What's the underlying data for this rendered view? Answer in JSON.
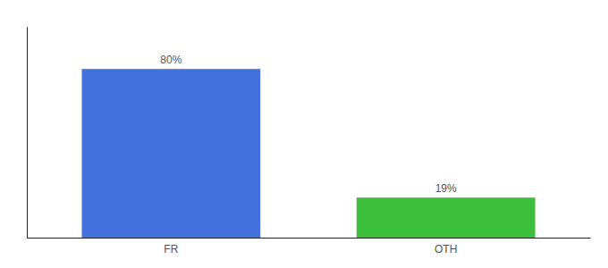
{
  "chart_data": {
    "type": "bar",
    "categories": [
      "FR",
      "OTH"
    ],
    "values": [
      80,
      19
    ],
    "value_labels": [
      "80%",
      "19%"
    ],
    "colors": [
      "#4472DD",
      "#3DBF3D"
    ],
    "ylim": [
      0,
      100
    ],
    "data_labels": true,
    "tick_labels": "x"
  }
}
